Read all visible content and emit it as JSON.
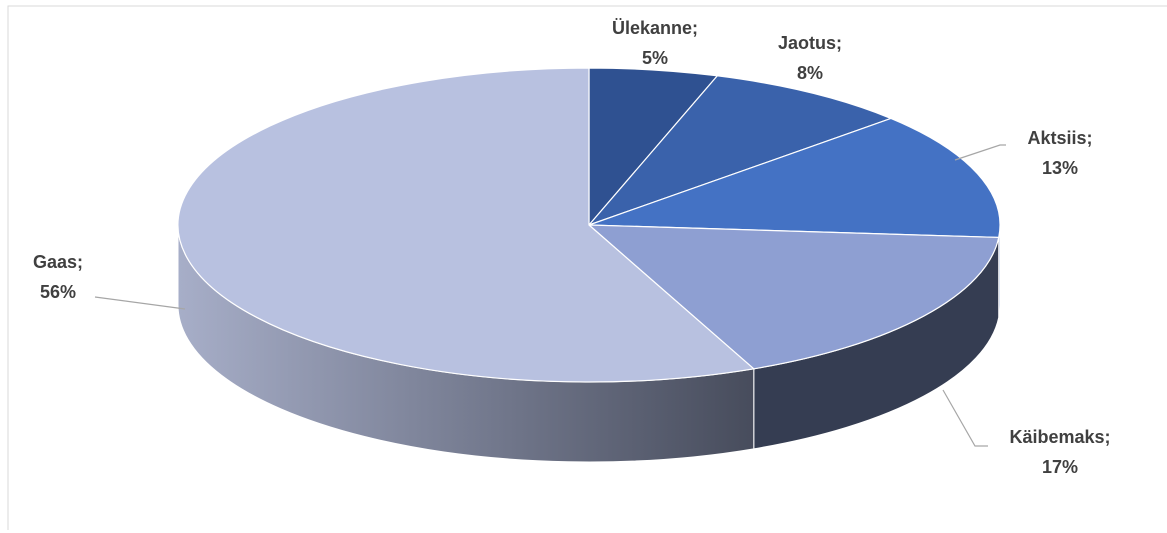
{
  "chart_data": {
    "type": "pie",
    "categories": [
      "Ülekanne;",
      "Jaotus;",
      "Aktsiis;",
      "Käibemaks;",
      "Gaas;"
    ],
    "values": [
      5,
      8,
      13,
      17,
      56
    ],
    "value_labels": [
      "5%",
      "8%",
      "13%",
      "17%",
      "56%"
    ],
    "colors": [
      "#2f5191",
      "#3a62ab",
      "#4472c4",
      "#8e9fd2",
      "#b8c1e0"
    ]
  }
}
